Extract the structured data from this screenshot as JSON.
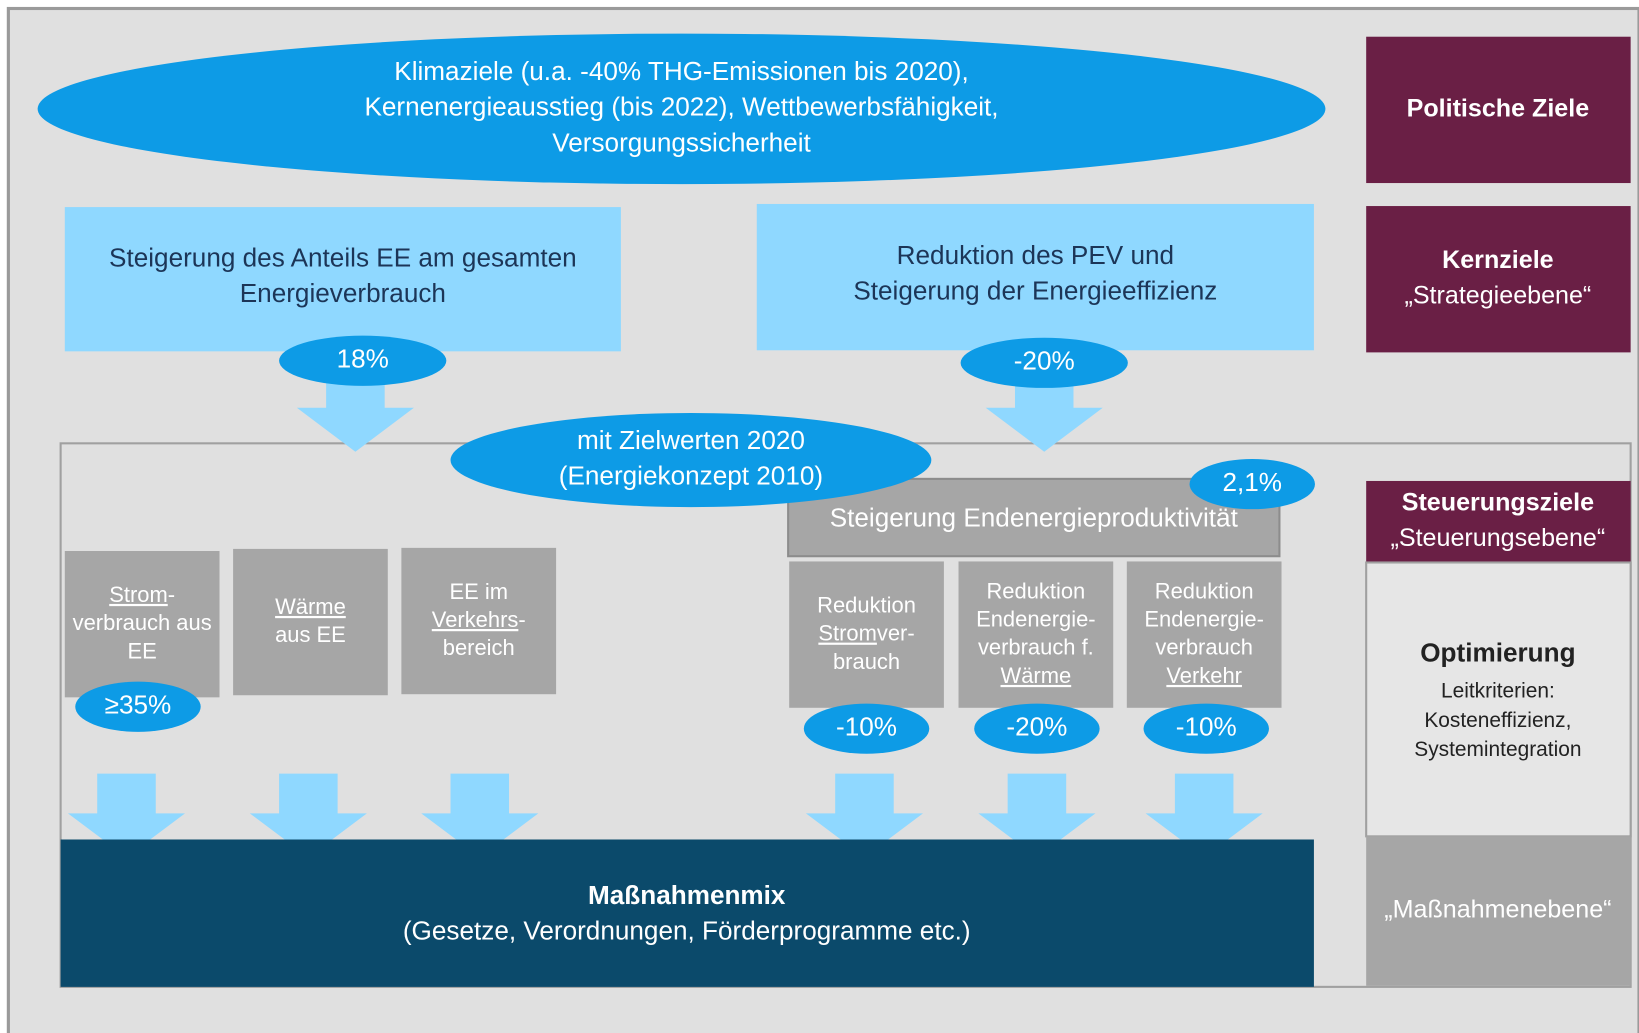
{
  "goal": {
    "lines": [
      "Klimaziele (u.a. -40% THG-Emissionen bis 2020),",
      "Kernenergieausstieg (bis 2022), Wettbewerbsfähigkeit,",
      "Versorgungssicherheit"
    ]
  },
  "core_goals": [
    {
      "lines": [
        "Steigerung des Anteils EE am gesamten",
        "Energieverbrauch"
      ],
      "target": "18%"
    },
    {
      "lines": [
        "Reduktion des PEV und",
        "Steigerung der Energieeffizienz"
      ],
      "target": "-20%"
    }
  ],
  "target_note": {
    "lines": [
      "mit Zielwerten 2020",
      "(Energiekonzept 2010)"
    ]
  },
  "productivity": {
    "label": "Steigerung Endenergieproduktivität",
    "target": "2,1%"
  },
  "sub_goals": [
    {
      "lines": [
        [
          {
            "text": "Strom",
            "underline": true
          },
          {
            "text": "-",
            "underline": false
          }
        ],
        [
          {
            "text": "verbrauch aus",
            "underline": false
          }
        ],
        [
          {
            "text": "EE",
            "underline": false
          }
        ]
      ],
      "target": "≥35%"
    },
    {
      "lines": [
        [
          {
            "text": "Wärme",
            "underline": true
          }
        ],
        [
          {
            "text": "aus EE",
            "underline": false
          }
        ]
      ]
    },
    {
      "lines": [
        [
          {
            "text": "EE im",
            "underline": false
          }
        ],
        [
          {
            "text": "Verkehrs",
            "underline": true
          },
          {
            "text": "-",
            "underline": false
          }
        ],
        [
          {
            "text": "bereich",
            "underline": false
          }
        ]
      ]
    },
    {
      "lines": [
        [
          {
            "text": "Reduktion",
            "underline": false
          }
        ],
        [
          {
            "text": "Strom",
            "underline": true
          },
          {
            "text": "ver-",
            "underline": false
          }
        ],
        [
          {
            "text": "brauch",
            "underline": false
          }
        ]
      ],
      "target": "-10%"
    },
    {
      "lines": [
        [
          {
            "text": "Reduktion",
            "underline": false
          }
        ],
        [
          {
            "text": "Endenergie-",
            "underline": false
          }
        ],
        [
          {
            "text": "verbrauch f.",
            "underline": false
          }
        ],
        [
          {
            "text": "Wärme",
            "underline": true
          }
        ]
      ],
      "target": "-20%"
    },
    {
      "lines": [
        [
          {
            "text": "Reduktion",
            "underline": false
          }
        ],
        [
          {
            "text": "Endenergie-",
            "underline": false
          }
        ],
        [
          {
            "text": "verbrauch",
            "underline": false
          }
        ],
        [
          {
            "text": "Verkehr",
            "underline": true
          }
        ]
      ],
      "target": "-10%"
    }
  ],
  "measures": {
    "title": "Maßnahmenmix",
    "subtitle": "(Gesetze, Verordnungen, Förderprogramme etc.)"
  },
  "levels": [
    {
      "title": "Politische Ziele"
    },
    {
      "title": "Kernziele",
      "subtitle": "„Strategieebene“"
    },
    {
      "title": "Steuerungsziele",
      "subtitle": "„Steuerungsebene“"
    },
    {
      "title": "Optimierung",
      "lines": [
        "Leitkriterien:",
        "Kosteneffizienz,",
        "Systemintegration"
      ]
    },
    {
      "subtitle": "„Maßnahmenebene“"
    }
  ]
}
